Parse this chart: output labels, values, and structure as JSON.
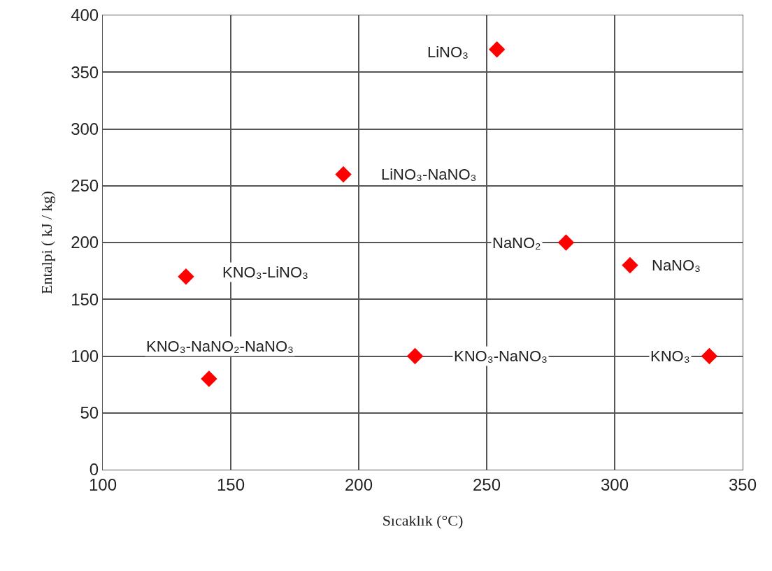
{
  "chart_data": {
    "type": "scatter",
    "xlabel": "Sıcaklık (°C)",
    "ylabel": "Entalpi ( kJ / kg)",
    "x": [
      254,
      194,
      281,
      306,
      132.5,
      141.5,
      222,
      337
    ],
    "values": [
      370,
      260,
      200,
      180,
      170,
      80,
      100,
      100
    ],
    "color": "#ff0000",
    "marker": "diamond",
    "grid": true,
    "xlim": [
      100,
      350
    ],
    "xticks": [
      100,
      150,
      200,
      250,
      300,
      350
    ],
    "ylim": [
      0,
      400
    ],
    "yticks": [
      0,
      50,
      100,
      150,
      200,
      250,
      300,
      350,
      400
    ],
    "annotations": [
      {
        "text": "LiNO₃",
        "x": 254,
        "y": 370
      },
      {
        "text": "LiNO₃-NaNO₃",
        "x": 194,
        "y": 260
      },
      {
        "text": "NaNO₂",
        "x": 281,
        "y": 200
      },
      {
        "text": "NaNO₃",
        "x": 306,
        "y": 180
      },
      {
        "text": "KNO₃-LiNO₃",
        "x": 132.5,
        "y": 170
      },
      {
        "text": "KNO₃-NaNO₂-NaNO₃",
        "x": 141.5,
        "y": 80
      },
      {
        "text": "KNO₃-NaNO₃",
        "x": 222,
        "y": 100
      },
      {
        "text": "KNO₃",
        "x": 337,
        "y": 100
      }
    ]
  }
}
